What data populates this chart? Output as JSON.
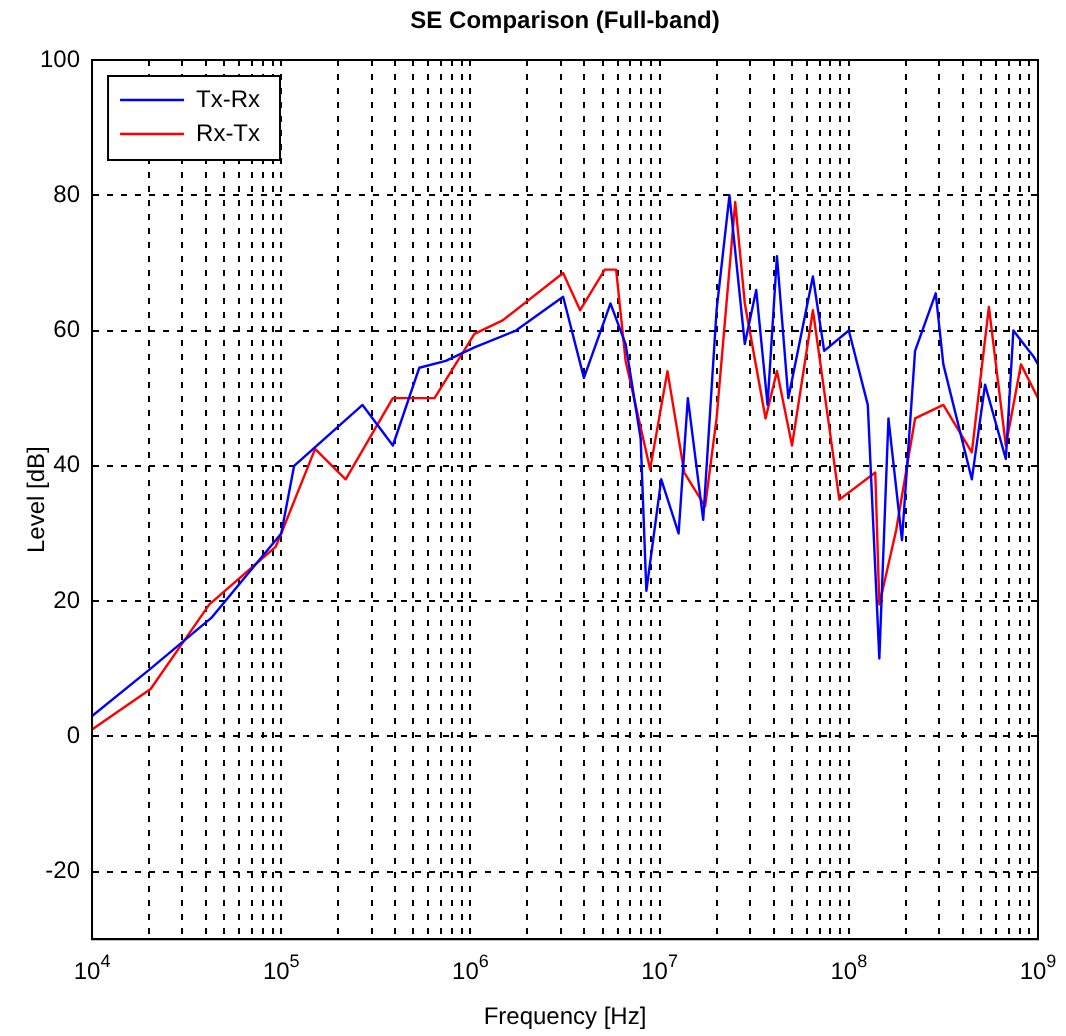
{
  "chart_data": {
    "type": "line",
    "title": "SE Comparison (Full-band)",
    "xlabel": "Frequency [Hz]",
    "ylabel": "Level [dB]",
    "log": "x",
    "grid": true,
    "legend": "top left",
    "marker": "none",
    "line_style": "solid",
    "xlim": [
      10000,
      1000000000
    ],
    "ylim": [
      -30,
      100
    ],
    "yticks": [
      -20,
      0,
      20,
      40,
      60,
      80,
      100
    ],
    "xticks": [
      {
        "value": 10000,
        "label": "10$^{4}$"
      },
      {
        "value": 20000,
        "label": null
      },
      {
        "value": 30000,
        "label": null
      },
      {
        "value": 40000,
        "label": null
      },
      {
        "value": 50000,
        "label": null
      },
      {
        "value": 60000,
        "label": null
      },
      {
        "value": 70000,
        "label": null
      },
      {
        "value": 80000,
        "label": null
      },
      {
        "value": 90000,
        "label": null
      },
      {
        "value": 100000,
        "label": "10$^{5}$"
      },
      {
        "value": 200000,
        "label": null
      },
      {
        "value": 300000,
        "label": null
      },
      {
        "value": 400000,
        "label": null
      },
      {
        "value": 500000,
        "label": null
      },
      {
        "value": 600000,
        "label": null
      },
      {
        "value": 700000,
        "label": null
      },
      {
        "value": 800000,
        "label": null
      },
      {
        "value": 900000,
        "label": null
      },
      {
        "value": 1000000,
        "label": "10$^{6}$"
      },
      {
        "value": 2000000,
        "label": null
      },
      {
        "value": 3000000,
        "label": null
      },
      {
        "value": 4000000,
        "label": null
      },
      {
        "value": 5000000,
        "label": null
      },
      {
        "value": 6000000,
        "label": null
      },
      {
        "value": 7000000,
        "label": null
      },
      {
        "value": 8000000,
        "label": null
      },
      {
        "value": 9000000,
        "label": null
      },
      {
        "value": 10000000,
        "label": "10$^{7}$"
      },
      {
        "value": 20000000,
        "label": null
      },
      {
        "value": 30000000,
        "label": null
      },
      {
        "value": 40000000,
        "label": null
      },
      {
        "value": 50000000,
        "label": null
      },
      {
        "value": 60000000,
        "label": null
      },
      {
        "value": 70000000,
        "label": null
      },
      {
        "value": 80000000,
        "label": null
      },
      {
        "value": 90000000,
        "label": null
      },
      {
        "value": 100000000,
        "label": "10$^{8}$"
      },
      {
        "value": 200000000,
        "label": null
      },
      {
        "value": 300000000,
        "label": null
      },
      {
        "value": 400000000,
        "label": null
      },
      {
        "value": 500000000,
        "label": null
      },
      {
        "value": 600000000,
        "label": null
      },
      {
        "value": 700000000,
        "label": null
      },
      {
        "value": 800000000,
        "label": null
      },
      {
        "value": 900000000,
        "label": null
      },
      {
        "value": 1000000000,
        "label": "10$^{9}$"
      }
    ],
    "series": [
      {
        "name": "Tx-Rx",
        "color": "#0000ff",
        "x": [
          10000,
          20400,
          42700,
          100000,
          117000,
          269000,
          389000,
          537000,
          741000,
          1050000,
          1740000,
          3090000,
          3980000,
          5500000,
          6610000,
          7940000,
          8510000,
          10200000,
          12600000,
          14100000,
          17000000,
          20000000,
          23400000,
          28200000,
          32400000,
          37200000,
          41700000,
          47900000,
          64600000,
          74100000,
          100000000,
          126000000,
          145000000,
          162000000,
          191000000,
          224000000,
          288000000,
          316000000,
          447000000,
          525000000,
          676000000,
          741000000,
          955000000,
          1000000000
        ],
        "values": [
          3,
          10,
          17.5,
          30,
          40,
          49,
          43,
          54.5,
          55.5,
          57.5,
          60,
          65,
          53,
          64,
          58,
          44,
          21.5,
          38,
          30,
          50,
          32,
          63,
          80,
          58,
          66,
          49,
          71,
          50,
          68,
          57,
          60,
          49,
          11.5,
          47,
          29,
          57,
          65.5,
          55,
          38,
          52,
          41,
          60,
          56,
          55
        ]
      },
      {
        "name": "Rx-Tx",
        "color": "#ff0000",
        "x": [
          10000,
          20400,
          41700,
          93300,
          100000,
          151000,
          219000,
          389000,
          646000,
          1050000,
          1480000,
          3090000,
          3800000,
          5130000,
          5890000,
          6610000,
          8910000,
          11000000,
          13500000,
          17400000,
          20000000,
          25100000,
          28200000,
          36300000,
          41700000,
          50100000,
          64600000,
          75900000,
          89100000,
          138000000,
          145000000,
          178000000,
          224000000,
          316000000,
          447000000,
          550000000,
          676000000,
          813000000,
          1000000000
        ],
        "values": [
          1,
          7,
          19.5,
          28,
          30,
          42.5,
          38,
          50,
          50,
          59.5,
          61.5,
          68.5,
          63,
          69,
          69,
          55.5,
          39.5,
          54,
          39,
          34,
          47,
          79,
          64,
          47,
          54,
          43,
          63,
          49,
          35,
          39,
          19.5,
          30.5,
          47,
          49,
          42,
          63.5,
          43,
          55,
          50
        ]
      }
    ]
  }
}
